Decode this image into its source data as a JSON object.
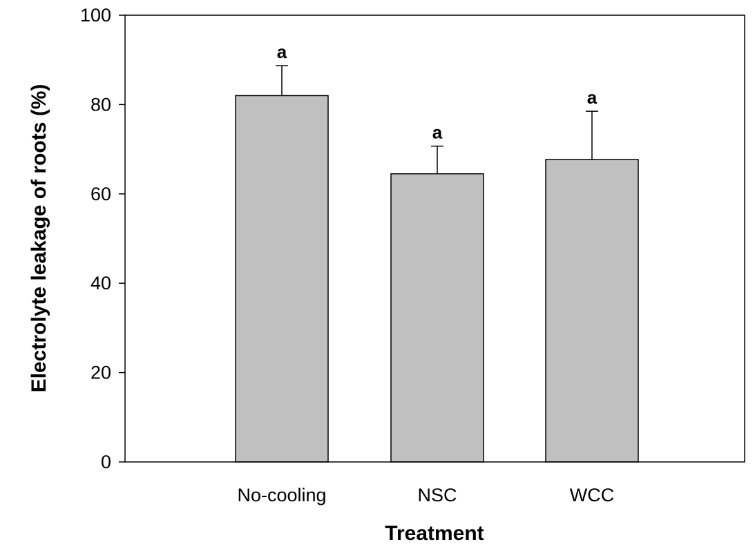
{
  "chart_data": {
    "type": "bar",
    "title": "",
    "xlabel": "Treatment",
    "ylabel": "Electrolyte leakage of roots (%)",
    "ylim": [
      0,
      100
    ],
    "yticks": [
      "0",
      "20",
      "40",
      "60",
      "80",
      "100"
    ],
    "categories": [
      "No-cooling",
      "NSC",
      "WCC"
    ],
    "values": [
      82.0,
      64.5,
      67.7
    ],
    "errors": [
      6.7,
      6.2,
      10.8
    ],
    "significance": [
      "a",
      "a",
      "a"
    ],
    "grid": false,
    "bar_color": "#c0c0c0"
  }
}
